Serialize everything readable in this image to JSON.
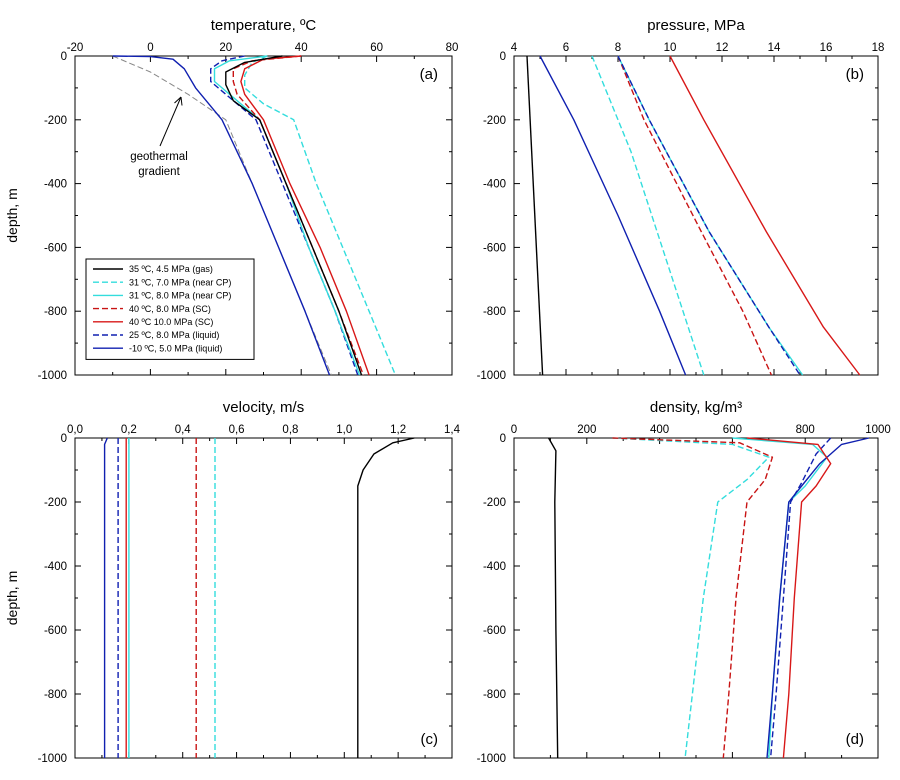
{
  "colors": {
    "gas": "#000000",
    "nearcp7": "#33dddd",
    "nearcp8": "#33dddd",
    "sc8": "#c81414",
    "sc10": "#d81818",
    "liquid25": "#1020b0",
    "liquid_10": "#1020b0",
    "geothermal": "#888888"
  },
  "legend": {
    "entries": [
      {
        "key": "gas",
        "label": "35 ºC, 4.5 MPa (gas)",
        "dash": false
      },
      {
        "key": "nearcp7",
        "label": "31 ºC, 7.0 MPa (near CP)",
        "dash": true
      },
      {
        "key": "nearcp8",
        "label": "31 ºC, 8.0 MPa (near CP)",
        "dash": false
      },
      {
        "key": "sc8",
        "label": "40 ºC, 8.0 MPa (SC)",
        "dash": true
      },
      {
        "key": "sc10",
        "label": "40 ºC 10.0 MPa (SC)",
        "dash": false
      },
      {
        "key": "liquid25",
        "label": "25 ºC, 8.0 MPa (liquid)",
        "dash": true
      },
      {
        "key": "liquid_10",
        "label": "-10 ºC, 5.0 MPa (liquid)",
        "dash": false
      }
    ]
  },
  "annotation": {
    "line1": "geothermal",
    "line2": "gradient"
  },
  "chart_data": [
    {
      "type": "line",
      "panel_label": "(a)",
      "title": "temperature, ºC",
      "ylabel": "depth, m",
      "xlim": [
        -20,
        80
      ],
      "ylim": [
        -1000,
        0
      ],
      "x_ticks": [
        -20,
        0,
        20,
        40,
        60,
        80
      ],
      "x_tick_labels": [
        "-20",
        "0",
        "20",
        "40",
        "60",
        "80"
      ],
      "y_ticks": [
        0,
        -200,
        -400,
        -600,
        -800,
        -1000
      ],
      "y_tick_labels": [
        "0",
        "-200",
        "-400",
        "-600",
        "-800",
        "-1000"
      ],
      "series": [
        {
          "key": "geothermal",
          "points": [
            [
              -10,
              0
            ],
            [
              0,
              -50
            ],
            [
              10,
              -120
            ],
            [
              20,
              -200
            ],
            [
              27,
              -400
            ],
            [
              34,
              -600
            ],
            [
              41,
              -800
            ],
            [
              48,
              -1000
            ]
          ]
        },
        {
          "key": "liquid_10",
          "points": [
            [
              -10,
              0
            ],
            [
              0,
              -2
            ],
            [
              6,
              -10
            ],
            [
              9,
              -40
            ],
            [
              12,
              -100
            ],
            [
              19,
              -200
            ],
            [
              27,
              -400
            ],
            [
              34,
              -600
            ],
            [
              41,
              -800
            ],
            [
              47.5,
              -1000
            ]
          ]
        },
        {
          "key": "liquid25",
          "points": [
            [
              25,
              0
            ],
            [
              19,
              -15
            ],
            [
              16,
              -40
            ],
            [
              16,
              -80
            ],
            [
              20,
              -120
            ],
            [
              28,
              -200
            ],
            [
              35,
              -400
            ],
            [
              42,
              -600
            ],
            [
              49,
              -800
            ],
            [
              55,
              -1000
            ]
          ]
        },
        {
          "key": "nearcp8",
          "points": [
            [
              31,
              0
            ],
            [
              21,
              -15
            ],
            [
              17,
              -40
            ],
            [
              17,
              -80
            ],
            [
              21,
              -120
            ],
            [
              29,
              -200
            ],
            [
              36,
              -400
            ],
            [
              42,
              -600
            ],
            [
              49,
              -800
            ],
            [
              55.5,
              -1000
            ]
          ]
        },
        {
          "key": "nearcp7",
          "points": [
            [
              31,
              0
            ],
            [
              27,
              -20
            ],
            [
              25,
              -60
            ],
            [
              25,
              -100
            ],
            [
              30,
              -150
            ],
            [
              38,
              -200
            ],
            [
              44,
              -400
            ],
            [
              51,
              -600
            ],
            [
              58,
              -800
            ],
            [
              65,
              -1000
            ]
          ]
        },
        {
          "key": "sc8",
          "points": [
            [
              40,
              0
            ],
            [
              27,
              -15
            ],
            [
              22,
              -40
            ],
            [
              22,
              -80
            ],
            [
              23,
              -120
            ],
            [
              29,
              -200
            ],
            [
              36,
              -400
            ],
            [
              43,
              -600
            ],
            [
              50,
              -800
            ],
            [
              56.5,
              -1000
            ]
          ]
        },
        {
          "key": "sc10",
          "points": [
            [
              40,
              0
            ],
            [
              30,
              -10
            ],
            [
              25,
              -40
            ],
            [
              24,
              -80
            ],
            [
              25,
              -120
            ],
            [
              30,
              -200
            ],
            [
              37,
              -400
            ],
            [
              45,
              -600
            ],
            [
              52,
              -800
            ],
            [
              58,
              -1000
            ]
          ]
        },
        {
          "key": "gas",
          "points": [
            [
              35,
              0
            ],
            [
              25,
              -20
            ],
            [
              20,
              -50
            ],
            [
              20,
              -90
            ],
            [
              22,
              -140
            ],
            [
              29,
              -200
            ],
            [
              36,
              -400
            ],
            [
              43,
              -600
            ],
            [
              50,
              -800
            ],
            [
              56,
              -1000
            ]
          ]
        }
      ]
    },
    {
      "type": "line",
      "panel_label": "(b)",
      "title": "pressure, MPa",
      "xlim": [
        4,
        18
      ],
      "ylim": [
        -1000,
        0
      ],
      "x_ticks": [
        4,
        6,
        8,
        10,
        12,
        14,
        16,
        18
      ],
      "x_tick_labels": [
        "4",
        "6",
        "8",
        "10",
        "12",
        "14",
        "16",
        "18"
      ],
      "y_ticks": [
        0,
        -200,
        -400,
        -600,
        -800,
        -1000
      ],
      "y_tick_labels": [
        "0",
        "-200",
        "-400",
        "-600",
        "-800",
        "-1000"
      ],
      "series": [
        {
          "key": "gas",
          "points": [
            [
              4.5,
              0
            ],
            [
              5.1,
              -1000
            ]
          ]
        },
        {
          "key": "liquid_10",
          "points": [
            [
              5.0,
              0
            ],
            [
              6.3,
              -200
            ],
            [
              8.0,
              -500
            ],
            [
              9.6,
              -800
            ],
            [
              10.6,
              -1000
            ]
          ]
        },
        {
          "key": "nearcp7",
          "points": [
            [
              7.0,
              0
            ],
            [
              7.5,
              -100
            ],
            [
              8.5,
              -300
            ],
            [
              9.7,
              -600
            ],
            [
              10.5,
              -800
            ],
            [
              11.3,
              -1000
            ]
          ]
        },
        {
          "key": "sc8",
          "points": [
            [
              8.0,
              0
            ],
            [
              9.0,
              -200
            ],
            [
              11.2,
              -550
            ],
            [
              12.8,
              -800
            ],
            [
              13.9,
              -1000
            ]
          ]
        },
        {
          "key": "nearcp8",
          "points": [
            [
              8.0,
              0
            ],
            [
              9.2,
              -200
            ],
            [
              11.5,
              -550
            ],
            [
              13.8,
              -850
            ],
            [
              15.1,
              -1000
            ]
          ]
        },
        {
          "key": "liquid25",
          "points": [
            [
              8.0,
              0
            ],
            [
              9.2,
              -200
            ],
            [
              11.5,
              -550
            ],
            [
              13.8,
              -850
            ],
            [
              15.0,
              -1000
            ]
          ]
        },
        {
          "key": "sc10",
          "points": [
            [
              10.0,
              0
            ],
            [
              11.3,
              -200
            ],
            [
              13.7,
              -550
            ],
            [
              15.9,
              -850
            ],
            [
              17.3,
              -1000
            ]
          ]
        }
      ]
    },
    {
      "type": "line",
      "panel_label": "(c)",
      "title": "velocity, m/s",
      "ylabel": "depth, m",
      "xlim": [
        0,
        1.4
      ],
      "ylim": [
        -1000,
        0
      ],
      "x_ticks": [
        0,
        0.2,
        0.4,
        0.6,
        0.8,
        1.0,
        1.2,
        1.4
      ],
      "x_tick_labels": [
        "0,0",
        "0,2",
        "0,4",
        "0,6",
        "0,8",
        "1,0",
        "1,2",
        "1,4"
      ],
      "y_ticks": [
        0,
        -200,
        -400,
        -600,
        -800,
        -1000
      ],
      "y_tick_labels": [
        "0",
        "-200",
        "-400",
        "-600",
        "-800",
        "-1000"
      ],
      "series": [
        {
          "key": "gas",
          "points": [
            [
              1.26,
              0
            ],
            [
              1.18,
              -15
            ],
            [
              1.11,
              -50
            ],
            [
              1.07,
              -100
            ],
            [
              1.05,
              -150
            ],
            [
              1.05,
              -1000
            ]
          ]
        },
        {
          "key": "nearcp7",
          "points": [
            [
              0.52,
              0
            ],
            [
              0.52,
              -1000
            ]
          ]
        },
        {
          "key": "sc8",
          "points": [
            [
              0.45,
              0
            ],
            [
              0.45,
              -1000
            ]
          ]
        },
        {
          "key": "nearcp8",
          "points": [
            [
              0.2,
              0
            ],
            [
              0.2,
              -1000
            ]
          ]
        },
        {
          "key": "sc10",
          "points": [
            [
              0.19,
              0
            ],
            [
              0.19,
              -1000
            ]
          ]
        },
        {
          "key": "liquid25",
          "points": [
            [
              0.16,
              0
            ],
            [
              0.16,
              -1000
            ]
          ]
        },
        {
          "key": "liquid_10",
          "points": [
            [
              0.12,
              0
            ],
            [
              0.11,
              -20
            ],
            [
              0.11,
              -1000
            ]
          ]
        }
      ]
    },
    {
      "type": "line",
      "panel_label": "(d)",
      "title": "density, kg/m³",
      "xlim": [
        0,
        1000
      ],
      "ylim": [
        -1000,
        0
      ],
      "x_ticks": [
        0,
        200,
        400,
        600,
        800,
        1000
      ],
      "x_tick_labels": [
        "0",
        "200",
        "400",
        "600",
        "800",
        "1000"
      ],
      "y_ticks": [
        0,
        -200,
        -400,
        -600,
        -800,
        -1000
      ],
      "y_tick_labels": [
        "0",
        "-200",
        "-400",
        "-600",
        "-800",
        "-1000"
      ],
      "series": [
        {
          "key": "gas",
          "points": [
            [
              95,
              0
            ],
            [
              115,
              -40
            ],
            [
              112,
              -200
            ],
            [
              115,
              -600
            ],
            [
              120,
              -1000
            ]
          ]
        },
        {
          "key": "nearcp7",
          "points": [
            [
              270,
              0
            ],
            [
              600,
              -20
            ],
            [
              700,
              -60
            ],
            [
              640,
              -130
            ],
            [
              560,
              -200
            ],
            [
              520,
              -500
            ],
            [
              490,
              -800
            ],
            [
              470,
              -1000
            ]
          ]
        },
        {
          "key": "sc8",
          "points": [
            [
              270,
              0
            ],
            [
              620,
              -15
            ],
            [
              710,
              -60
            ],
            [
              690,
              -130
            ],
            [
              640,
              -200
            ],
            [
              610,
              -500
            ],
            [
              590,
              -800
            ],
            [
              575,
              -1000
            ]
          ]
        },
        {
          "key": "nearcp8",
          "points": [
            [
              600,
              0
            ],
            [
              820,
              -20
            ],
            [
              860,
              -60
            ],
            [
              800,
              -150
            ],
            [
              755,
              -200
            ],
            [
              730,
              -500
            ],
            [
              710,
              -800
            ],
            [
              700,
              -1000
            ]
          ]
        },
        {
          "key": "liquid25",
          "points": [
            [
              870,
              0
            ],
            [
              830,
              -50
            ],
            [
              790,
              -140
            ],
            [
              760,
              -200
            ],
            [
              740,
              -500
            ],
            [
              720,
              -800
            ],
            [
              705,
              -1000
            ]
          ]
        },
        {
          "key": "liquid_10",
          "points": [
            [
              975,
              0
            ],
            [
              900,
              -20
            ],
            [
              840,
              -80
            ],
            [
              790,
              -150
            ],
            [
              755,
              -200
            ],
            [
              730,
              -500
            ],
            [
              710,
              -800
            ],
            [
              695,
              -1000
            ]
          ]
        },
        {
          "key": "sc10",
          "points": [
            [
              640,
              0
            ],
            [
              835,
              -20
            ],
            [
              870,
              -80
            ],
            [
              830,
              -150
            ],
            [
              790,
              -200
            ],
            [
              770,
              -500
            ],
            [
              755,
              -800
            ],
            [
              740,
              -1000
            ]
          ]
        }
      ]
    }
  ]
}
